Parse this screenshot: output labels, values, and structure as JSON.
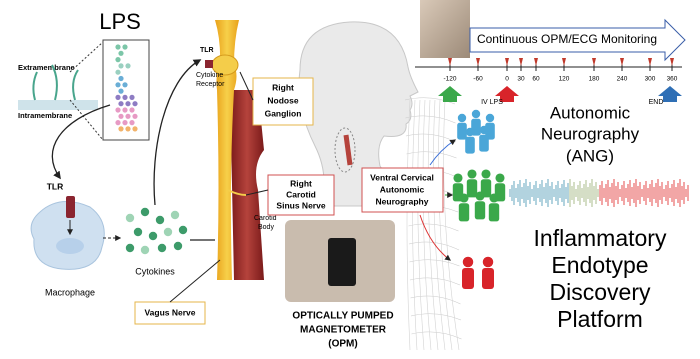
{
  "lps": {
    "title": "LPS",
    "extramembrane": "Extramembrane",
    "intramembrane": "Intramembrane"
  },
  "macrophage": {
    "tlr": "TLR",
    "label": "Macrophage"
  },
  "cytokines": "Cytokines",
  "nerve": {
    "tlr": "TLR",
    "cytokine_receptor": [
      "Cytokine",
      "Receptor"
    ],
    "nodose": [
      "Right",
      "Nodose",
      "Ganglion"
    ],
    "carotid_sinus": [
      "Right",
      "Carotid",
      "Sinus Nerve"
    ],
    "carotid_body": [
      "Carotid",
      "Body"
    ],
    "vagus": "Vagus Nerve"
  },
  "opm": [
    "OPTICALLY PUMPED",
    "MAGNETOMETER",
    "(OPM)"
  ],
  "neurography": [
    "Ventral Cervical",
    "Autonomic",
    "Neurography"
  ],
  "timeline": {
    "banner": "Continuous OPM/ECG Monitoring",
    "ticks": [
      -120,
      -60,
      0,
      30,
      60,
      120,
      180,
      240,
      300,
      360
    ],
    "start": "IV LPS",
    "end": "END"
  },
  "ang": [
    "Autonomic",
    "Neurography",
    "(ANG)"
  ],
  "platform": [
    "Inflammatory",
    "Endotype",
    "Discovery",
    "Platform"
  ]
}
